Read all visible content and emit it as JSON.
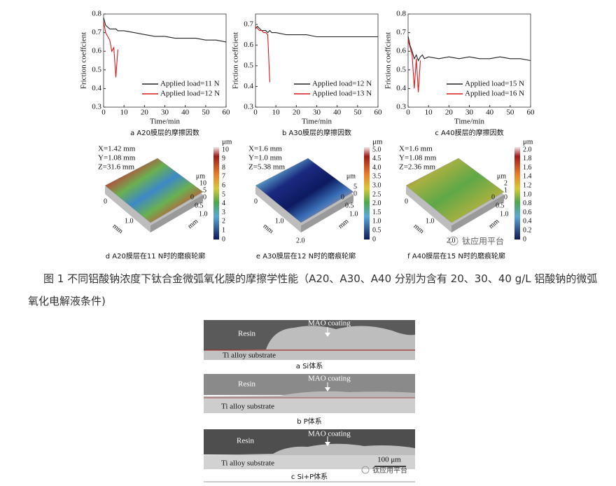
{
  "chart_data": [
    {
      "type": "line",
      "subtitle": "a A20膜层的摩擦因数",
      "x_label": "Time/min",
      "y_label": "Friction coeffcient",
      "x": [
        0,
        1,
        2,
        3,
        4,
        5,
        6,
        7,
        8,
        10,
        15,
        20,
        25,
        30,
        35,
        40,
        45,
        50,
        55,
        60
      ],
      "xlim": [
        0,
        60
      ],
      "xticks": [
        0,
        10,
        20,
        30,
        40,
        50,
        60
      ],
      "ylim": [
        0.3,
        0.8
      ],
      "yticks": [
        0.3,
        0.4,
        0.5,
        0.6,
        0.7,
        0.8
      ],
      "legend": "lower right",
      "series": [
        {
          "name": "Applied load=11 N",
          "color": "#222222",
          "values": [
            0.78,
            0.74,
            0.73,
            0.72,
            0.72,
            0.72,
            0.72,
            0.71,
            0.71,
            0.71,
            0.7,
            0.69,
            0.68,
            0.68,
            0.67,
            0.67,
            0.67,
            0.66,
            0.66,
            0.65
          ]
        },
        {
          "name": "Applied load=12 N",
          "color": "#d7191c",
          "values": [
            0.76,
            0.7,
            0.68,
            0.66,
            0.6,
            0.62,
            0.46,
            0.61,
            null,
            null,
            null,
            null,
            null,
            null,
            null,
            null,
            null,
            null,
            null,
            null
          ]
        }
      ]
    },
    {
      "type": "line",
      "subtitle": "b A30膜层的摩擦因数",
      "x_label": "Time/min",
      "y_label": "Friction coeffcient",
      "x": [
        0,
        1,
        2,
        3,
        4,
        5,
        6,
        7,
        8,
        10,
        15,
        20,
        25,
        30,
        35,
        40,
        45,
        50,
        55,
        60
      ],
      "xlim": [
        0,
        60
      ],
      "xticks": [
        0,
        10,
        20,
        30,
        40,
        50,
        60
      ],
      "ylim": [
        0.3,
        0.75
      ],
      "yticks": [
        0.3,
        0.4,
        0.5,
        0.6,
        0.7
      ],
      "legend": "lower right",
      "series": [
        {
          "name": "Applied load=12 N",
          "color": "#222222",
          "values": [
            0.68,
            0.69,
            0.68,
            0.67,
            0.67,
            0.67,
            0.66,
            0.67,
            0.66,
            0.66,
            0.65,
            0.65,
            0.65,
            0.64,
            0.64,
            0.64,
            0.64,
            0.64,
            0.64,
            0.64
          ]
        },
        {
          "name": "Applied load=13 N",
          "color": "#d7191c",
          "values": [
            0.69,
            0.68,
            0.67,
            0.67,
            0.66,
            0.66,
            0.65,
            0.42,
            null,
            null,
            null,
            null,
            null,
            null,
            null,
            null,
            null,
            null,
            null,
            null
          ]
        }
      ]
    },
    {
      "type": "line",
      "subtitle": "c A40膜层的摩擦因数",
      "x_label": "Time/min",
      "y_label": "Friction coeffcient",
      "x": [
        0,
        1,
        2,
        3,
        4,
        5,
        6,
        7,
        8,
        10,
        15,
        20,
        25,
        30,
        35,
        40,
        45,
        50,
        55,
        60
      ],
      "xlim": [
        0,
        60
      ],
      "xticks": [
        0,
        10,
        20,
        30,
        40,
        50,
        60
      ],
      "ylim": [
        0.3,
        0.8
      ],
      "yticks": [
        0.3,
        0.4,
        0.5,
        0.6,
        0.7,
        0.8
      ],
      "legend": "lower right",
      "series": [
        {
          "name": "Applied load=15 N",
          "color": "#222222",
          "values": [
            0.68,
            0.63,
            0.6,
            0.56,
            0.58,
            0.55,
            0.57,
            0.58,
            0.56,
            0.57,
            0.56,
            0.57,
            0.56,
            0.57,
            0.56,
            0.56,
            0.57,
            0.56,
            0.56,
            0.55
          ]
        },
        {
          "name": "Applied load=16 N",
          "color": "#d7191c",
          "values": [
            0.66,
            0.62,
            0.58,
            0.4,
            0.56,
            0.38,
            0.55,
            null,
            null,
            null,
            null,
            null,
            null,
            null,
            null,
            null,
            null,
            null,
            null,
            null
          ]
        }
      ]
    }
  ],
  "profiles": [
    {
      "params": [
        "X=1.42 mm",
        "Y=1.08 mm",
        "Z=31.6 mm"
      ],
      "unit": "μm",
      "colorbar": [
        "10",
        "9",
        "8",
        "7",
        "6",
        "5",
        "4",
        "3",
        "2",
        "1",
        "0"
      ],
      "z_ticks": [
        "10",
        "5",
        "0"
      ],
      "x_ticks": [
        "0",
        "0.5",
        "1.0"
      ],
      "y_ticks": [
        "0",
        "1.0"
      ],
      "axis_unit": "mm",
      "caption": "d A20膜层在11 N时的磨痕轮廓"
    },
    {
      "params": [
        "X=1.6 mm",
        "Y=1.0 mm",
        "Z=5.38 mm"
      ],
      "unit": "μm",
      "colorbar": [
        "5.0",
        "4.5",
        "4.0",
        "3.5",
        "3.0",
        "2.5",
        "2.0",
        "1.5",
        "1.0",
        "0.5",
        "0"
      ],
      "z_ticks": [
        "5",
        "0"
      ],
      "x_ticks": [
        "0",
        "0.5",
        "1.0"
      ],
      "y_ticks": [
        "0",
        "1.0",
        "2.0"
      ],
      "axis_unit": "mm",
      "caption": "e A30膜层在12 N时的磨痕轮廓"
    },
    {
      "params": [
        "X=1.6 mm",
        "Y=1.08 mm",
        "Z=2.36 mm"
      ],
      "unit": "μm",
      "colorbar": [
        "2.0",
        "1.8",
        "1.6",
        "1.4",
        "1.2",
        "1.0",
        "0.8",
        "0.6",
        "0.4",
        "0.2",
        "0"
      ],
      "z_ticks": [
        "2",
        "1",
        "0"
      ],
      "x_ticks": [
        "0",
        "0.5",
        "1.0"
      ],
      "y_ticks": [
        "0",
        "1.0",
        "2.0"
      ],
      "axis_unit": "mm",
      "caption": "f A40膜层在15 N时的磨痕轮廓"
    }
  ],
  "caption": "图 1 不同铝酸钠浓度下钛合金微弧氧化膜的摩擦学性能（A20、A30、A40 分别为含有 20、30、40 g/L 铝酸钠的微弧氧化电解液条件)",
  "micrographs": [
    {
      "resin": "Resin",
      "coating": "MAO coating",
      "substrate": "Ti alloy substrate",
      "caption": "a Si体系"
    },
    {
      "resin": "Resin",
      "coating": "MAO coating",
      "substrate": "Ti alloy substrate",
      "caption": "b P体系"
    },
    {
      "resin": "Resin",
      "coating": "MAO coating",
      "substrate": "Ti alloy substrate",
      "caption": "c Si+P体系",
      "scale": "100 μm"
    }
  ],
  "watermarks": [
    "钛应用平台",
    "钛应用平台"
  ]
}
